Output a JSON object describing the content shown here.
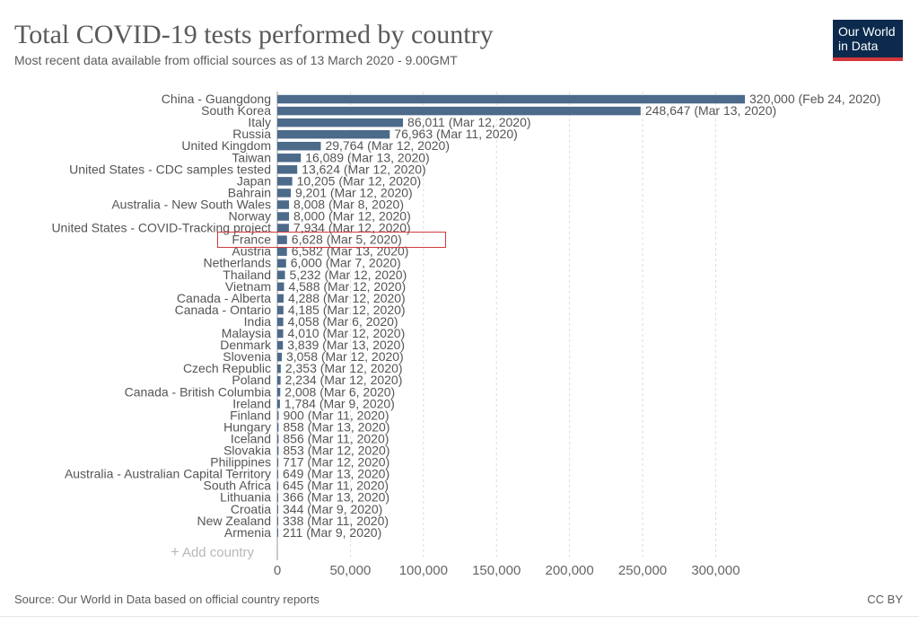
{
  "header": {
    "title": "Total COVID-19 tests performed by country",
    "subtitle": "Most recent data available from official sources as of 13 March 2020 - 9.00GMT"
  },
  "logo": {
    "line1": "Our World",
    "line2": "in Data",
    "colors": {
      "bg": "#0b2a4d",
      "accent": "#d4373b"
    }
  },
  "controls": {
    "add_country_label": "Add country",
    "add_icon": "plus-icon"
  },
  "footer": {
    "source": "Source: Our World in Data based on official country reports",
    "license": "CC BY"
  },
  "annotation": {
    "highlighted_category": "France",
    "color": "#d03a3a"
  },
  "chart_data": {
    "type": "bar",
    "orientation": "horizontal",
    "title": "Total COVID-19 tests performed by country",
    "bar_color": "#4c6a8a",
    "xlim": [
      0,
      320000
    ],
    "xticks": [
      0,
      50000,
      100000,
      150000,
      200000,
      250000,
      300000
    ],
    "xtick_labels": [
      "0",
      "50,000",
      "100,000",
      "150,000",
      "200,000",
      "250,000",
      "300,000"
    ],
    "grid": "vertical dashed",
    "categories": [
      "China - Guangdong",
      "South Korea",
      "Italy",
      "Russia",
      "United Kingdom",
      "Taiwan",
      "United States - CDC samples tested",
      "Japan",
      "Bahrain",
      "Australia - New South Wales",
      "Norway",
      "United States - COVID-Tracking project",
      "France",
      "Austria",
      "Netherlands",
      "Thailand",
      "Vietnam",
      "Canada - Alberta",
      "Canada - Ontario",
      "India",
      "Malaysia",
      "Denmark",
      "Slovenia",
      "Czech Republic",
      "Poland",
      "Canada - British Columbia",
      "Ireland",
      "Finland",
      "Hungary",
      "Iceland",
      "Slovakia",
      "Philippines",
      "Australia - Australian Capital Territory",
      "South Africa",
      "Lithuania",
      "Croatia",
      "New Zealand",
      "Armenia"
    ],
    "values": [
      320000,
      248647,
      86011,
      76963,
      29764,
      16089,
      13624,
      10205,
      9201,
      8008,
      8000,
      7934,
      6628,
      6582,
      6000,
      5232,
      4588,
      4288,
      4185,
      4058,
      4010,
      3839,
      3058,
      2353,
      2234,
      2008,
      1784,
      900,
      858,
      856,
      853,
      717,
      649,
      645,
      366,
      344,
      338,
      211
    ],
    "value_labels": [
      "320,000 (Feb 24, 2020)",
      "248,647 (Mar 13, 2020)",
      "86,011 (Mar 12, 2020)",
      "76,963 (Mar 11, 2020)",
      "29,764 (Mar 12, 2020)",
      "16,089 (Mar 13, 2020)",
      "13,624 (Mar 12, 2020)",
      "10,205 (Mar 12, 2020)",
      "9,201 (Mar 12, 2020)",
      "8,008 (Mar 8, 2020)",
      "8,000 (Mar 12, 2020)",
      "7,934 (Mar 12, 2020)",
      "6,628 (Mar 5, 2020)",
      "6,582 (Mar 13, 2020)",
      "6,000 (Mar 7, 2020)",
      "5,232 (Mar 12, 2020)",
      "4,588 (Mar 12, 2020)",
      "4,288 (Mar 12, 2020)",
      "4,185 (Mar 12, 2020)",
      "4,058 (Mar 6, 2020)",
      "4,010 (Mar 12, 2020)",
      "3,839 (Mar 13, 2020)",
      "3,058 (Mar 12, 2020)",
      "2,353 (Mar 12, 2020)",
      "2,234 (Mar 12, 2020)",
      "2,008 (Mar 6, 2020)",
      "1,784 (Mar 9, 2020)",
      "900 (Mar 11, 2020)",
      "858 (Mar 13, 2020)",
      "856 (Mar 11, 2020)",
      "853 (Mar 12, 2020)",
      "717 (Mar 12, 2020)",
      "649 (Mar 13, 2020)",
      "645 (Mar 11, 2020)",
      "366 (Mar 13, 2020)",
      "344 (Mar 9, 2020)",
      "338 (Mar 11, 2020)",
      "211 (Mar 9, 2020)"
    ]
  }
}
